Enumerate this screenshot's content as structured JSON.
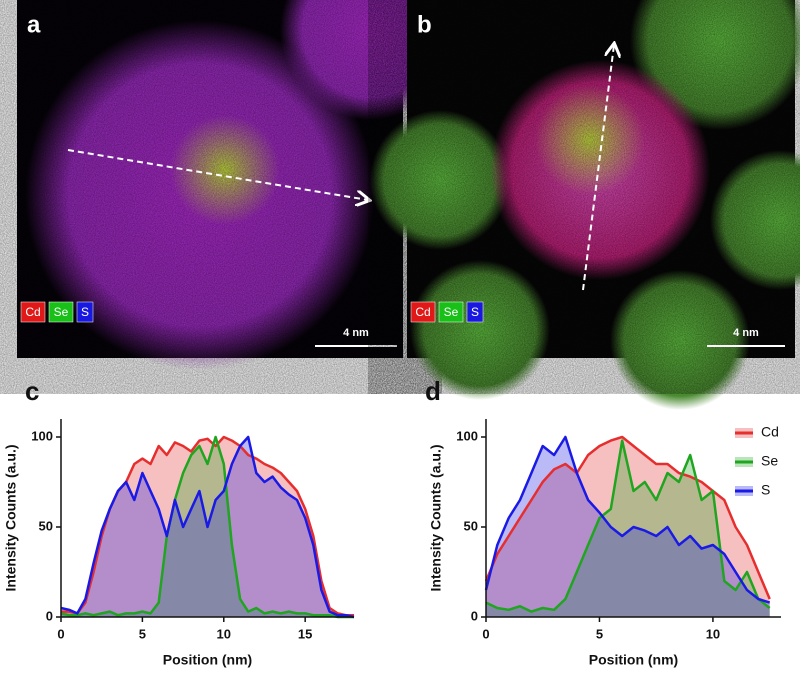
{
  "panels": [
    {
      "label": "a",
      "elements": [
        "Cd",
        "Se",
        "S"
      ],
      "scale": "4 nm"
    },
    {
      "label": "b",
      "elements": [
        "Cd",
        "Se",
        "S"
      ],
      "scale": "4 nm"
    }
  ],
  "chart_data": [
    {
      "type": "line",
      "label": "c",
      "xlabel": "Position (nm)",
      "ylabel": "Intensity Counts (a.u.)",
      "xlim": [
        0,
        18
      ],
      "ylim": [
        0,
        110
      ],
      "xticks": [
        0,
        5,
        10,
        15
      ],
      "yticks": [
        0,
        50,
        100
      ],
      "fill": true,
      "legend": false,
      "x": [
        0,
        0.5,
        1,
        1.5,
        2,
        2.5,
        3,
        3.5,
        4,
        4.5,
        5,
        5.5,
        6,
        6.5,
        7,
        7.5,
        8,
        8.5,
        9,
        9.5,
        10,
        10.5,
        11,
        11.5,
        12,
        12.5,
        13,
        13.5,
        14,
        14.5,
        15,
        15.5,
        16,
        16.5,
        17,
        17.5,
        18
      ],
      "series": [
        {
          "color": "#e62e2e",
          "values": [
            3,
            3,
            2,
            8,
            25,
            45,
            60,
            70,
            75,
            85,
            88,
            85,
            95,
            90,
            97,
            95,
            92,
            98,
            99,
            95,
            100,
            98,
            95,
            90,
            88,
            85,
            83,
            80,
            75,
            70,
            60,
            45,
            20,
            5,
            2,
            1,
            1
          ]
        },
        {
          "color": "#1fa51f",
          "values": [
            2,
            1,
            1,
            2,
            1,
            2,
            3,
            1,
            2,
            2,
            3,
            2,
            8,
            45,
            65,
            80,
            90,
            95,
            85,
            100,
            85,
            40,
            10,
            3,
            5,
            2,
            3,
            2,
            3,
            2,
            2,
            1,
            1,
            1,
            0,
            0,
            0
          ]
        },
        {
          "color": "#1a1ae6",
          "values": [
            5,
            4,
            2,
            10,
            30,
            48,
            60,
            70,
            75,
            65,
            80,
            70,
            60,
            45,
            65,
            50,
            60,
            70,
            50,
            65,
            70,
            85,
            95,
            100,
            80,
            75,
            78,
            72,
            68,
            65,
            55,
            40,
            15,
            3,
            1,
            1,
            0
          ]
        }
      ]
    },
    {
      "type": "line",
      "label": "d",
      "xlabel": "Position (nm)",
      "ylabel": "Intensity Counts (a.u.)",
      "xlim": [
        0,
        13
      ],
      "ylim": [
        0,
        110
      ],
      "xticks": [
        0,
        5,
        10
      ],
      "yticks": [
        0,
        50,
        100
      ],
      "fill": true,
      "legend": "upper right",
      "x": [
        0,
        0.5,
        1,
        1.5,
        2,
        2.5,
        3,
        3.5,
        4,
        4.5,
        5,
        5.5,
        6,
        6.5,
        7,
        7.5,
        8,
        8.5,
        9,
        9.5,
        10,
        10.5,
        11,
        11.5,
        12,
        12.5
      ],
      "series": [
        {
          "name": "Cd",
          "color": "#e62e2e",
          "values": [
            20,
            35,
            45,
            55,
            65,
            75,
            82,
            85,
            80,
            90,
            95,
            98,
            100,
            95,
            90,
            85,
            85,
            80,
            78,
            75,
            70,
            65,
            50,
            40,
            25,
            10
          ]
        },
        {
          "name": "Se",
          "color": "#1fa51f",
          "values": [
            8,
            5,
            4,
            6,
            3,
            5,
            4,
            10,
            25,
            40,
            55,
            60,
            98,
            70,
            75,
            65,
            80,
            75,
            90,
            65,
            70,
            20,
            15,
            25,
            10,
            5
          ]
        },
        {
          "name": "S",
          "color": "#1a1ae6",
          "values": [
            15,
            40,
            55,
            65,
            80,
            95,
            90,
            100,
            80,
            65,
            58,
            50,
            45,
            50,
            48,
            45,
            50,
            40,
            45,
            38,
            40,
            35,
            25,
            15,
            10,
            8
          ]
        }
      ]
    }
  ]
}
